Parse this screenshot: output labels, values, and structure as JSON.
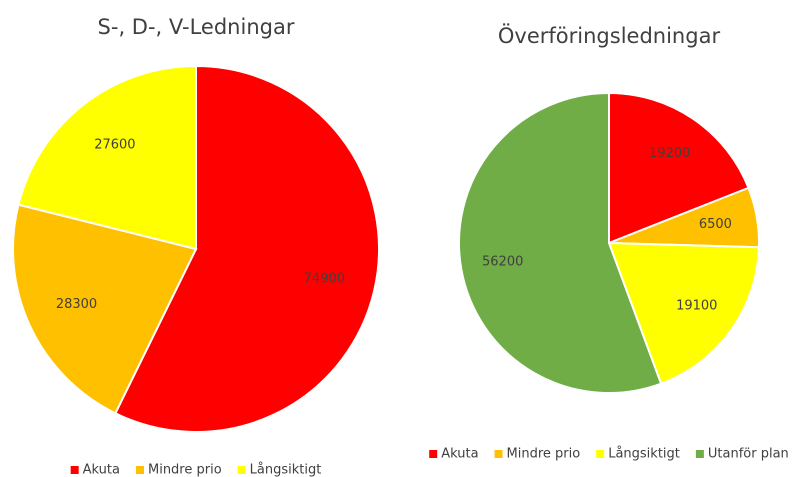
{
  "chart_data": [
    {
      "type": "pie",
      "title": "S-, D-, V-Ledningar",
      "categories": [
        "Akuta",
        "Mindre prio",
        "Långsiktigt"
      ],
      "values": [
        74900,
        28300,
        27600
      ],
      "colors": [
        "#ff0000",
        "#ffc000",
        "#ffff00"
      ],
      "legend": "bottom"
    },
    {
      "type": "pie",
      "title": "Överföringsledningar",
      "categories": [
        "Akuta",
        "Mindre prio",
        "Långsiktigt",
        "Utanför plan"
      ],
      "values": [
        19200,
        6500,
        19100,
        56200
      ],
      "colors": [
        "#ff0000",
        "#ffc000",
        "#ffff00",
        "#70ad47"
      ],
      "legend": "bottom"
    }
  ]
}
